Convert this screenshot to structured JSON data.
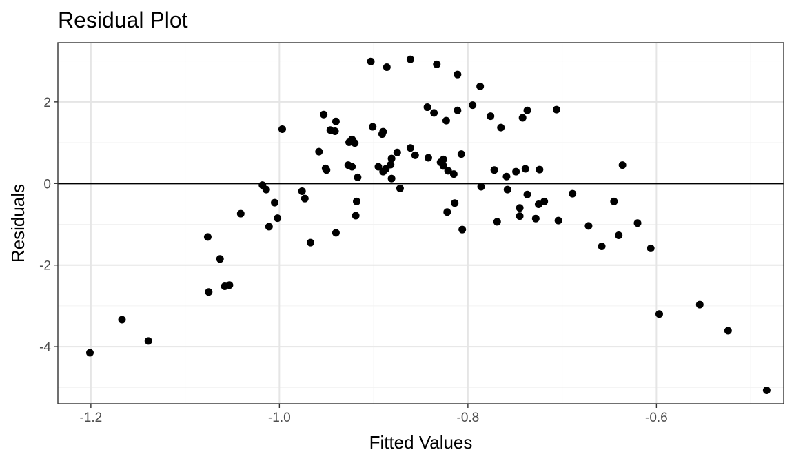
{
  "chart_data": {
    "type": "scatter",
    "title": "Residual Plot",
    "xlabel": "Fitted Values",
    "ylabel": "Residuals",
    "xlim": [
      -1.235,
      -0.465
    ],
    "ylim": [
      -5.4,
      3.45
    ],
    "x_ticks": [
      -1.2,
      -1.0,
      -0.8,
      -0.6
    ],
    "x_tick_labels": [
      "-1.2",
      "-1.0",
      "-0.8",
      "-0.6"
    ],
    "x_minor_ticks": [
      -1.1,
      -0.9,
      -0.7,
      -0.5
    ],
    "y_ticks": [
      -4,
      -2,
      0,
      2
    ],
    "y_tick_labels": [
      "-4",
      "-2",
      "0",
      "2"
    ],
    "y_minor_ticks": [
      -5,
      -3,
      -1,
      1,
      3
    ],
    "hline": 0,
    "grid": true,
    "legend": "none",
    "point_color": "#000000",
    "points": [
      [
        -1.201,
        -4.15
      ],
      [
        -1.167,
        -3.34
      ],
      [
        -1.139,
        -3.86
      ],
      [
        -1.076,
        -1.31
      ],
      [
        -1.075,
        -2.66
      ],
      [
        -1.063,
        -1.85
      ],
      [
        -1.058,
        -2.52
      ],
      [
        -1.053,
        -2.49
      ],
      [
        -1.041,
        -0.74
      ],
      [
        -1.018,
        -0.04
      ],
      [
        -1.014,
        -0.15
      ],
      [
        -1.011,
        -1.06
      ],
      [
        -1.005,
        -0.47
      ],
      [
        -1.002,
        -0.85
      ],
      [
        -0.997,
        1.33
      ],
      [
        -0.976,
        -0.19
      ],
      [
        -0.973,
        -0.37
      ],
      [
        -0.967,
        -1.45
      ],
      [
        -0.958,
        0.78
      ],
      [
        -0.953,
        1.69
      ],
      [
        -0.951,
        0.37
      ],
      [
        -0.95,
        0.33
      ],
      [
        -0.946,
        1.31
      ],
      [
        -0.941,
        1.28
      ],
      [
        -0.94,
        1.52
      ],
      [
        -0.94,
        -1.21
      ],
      [
        -0.927,
        0.45
      ],
      [
        -0.926,
        1.01
      ],
      [
        -0.923,
        1.08
      ],
      [
        -0.923,
        0.41
      ],
      [
        -0.92,
        0.99
      ],
      [
        -0.919,
        -0.79
      ],
      [
        -0.918,
        -0.44
      ],
      [
        -0.917,
        0.15
      ],
      [
        -0.903,
        2.99
      ],
      [
        -0.901,
        1.39
      ],
      [
        -0.895,
        0.41
      ],
      [
        -0.891,
        1.21
      ],
      [
        -0.89,
        1.27
      ],
      [
        -0.89,
        0.29
      ],
      [
        -0.887,
        0.36
      ],
      [
        -0.886,
        2.85
      ],
      [
        -0.882,
        0.46
      ],
      [
        -0.881,
        0.61
      ],
      [
        -0.881,
        0.12
      ],
      [
        -0.875,
        0.76
      ],
      [
        -0.872,
        -0.12
      ],
      [
        -0.861,
        3.04
      ],
      [
        -0.861,
        0.87
      ],
      [
        -0.856,
        0.69
      ],
      [
        -0.843,
        1.87
      ],
      [
        -0.842,
        0.63
      ],
      [
        -0.836,
        1.73
      ],
      [
        -0.833,
        2.92
      ],
      [
        -0.829,
        0.52
      ],
      [
        -0.826,
        0.43
      ],
      [
        -0.826,
        0.59
      ],
      [
        -0.823,
        1.54
      ],
      [
        -0.822,
        -0.7
      ],
      [
        -0.821,
        0.31
      ],
      [
        -0.815,
        0.23
      ],
      [
        -0.814,
        -0.48
      ],
      [
        -0.811,
        2.67
      ],
      [
        -0.811,
        1.79
      ],
      [
        -0.807,
        0.72
      ],
      [
        -0.806,
        -1.13
      ],
      [
        -0.795,
        1.92
      ],
      [
        -0.787,
        2.38
      ],
      [
        -0.786,
        -0.08
      ],
      [
        -0.776,
        1.65
      ],
      [
        -0.772,
        0.33
      ],
      [
        -0.769,
        -0.94
      ],
      [
        -0.765,
        1.37
      ],
      [
        -0.759,
        0.17
      ],
      [
        -0.758,
        -0.15
      ],
      [
        -0.749,
        0.29
      ],
      [
        -0.745,
        -0.6
      ],
      [
        -0.745,
        -0.8
      ],
      [
        -0.742,
        1.61
      ],
      [
        -0.739,
        0.36
      ],
      [
        -0.737,
        1.79
      ],
      [
        -0.737,
        -0.27
      ],
      [
        -0.728,
        -0.86
      ],
      [
        -0.725,
        -0.51
      ],
      [
        -0.724,
        0.34
      ],
      [
        -0.719,
        -0.44
      ],
      [
        -0.706,
        1.81
      ],
      [
        -0.704,
        -0.91
      ],
      [
        -0.689,
        -0.25
      ],
      [
        -0.672,
        -1.04
      ],
      [
        -0.658,
        -1.54
      ],
      [
        -0.645,
        -0.44
      ],
      [
        -0.64,
        -1.27
      ],
      [
        -0.636,
        0.45
      ],
      [
        -0.62,
        -0.97
      ],
      [
        -0.606,
        -1.59
      ],
      [
        -0.597,
        -3.2
      ],
      [
        -0.554,
        -2.97
      ],
      [
        -0.524,
        -3.61
      ],
      [
        -0.483,
        -5.07
      ]
    ]
  }
}
